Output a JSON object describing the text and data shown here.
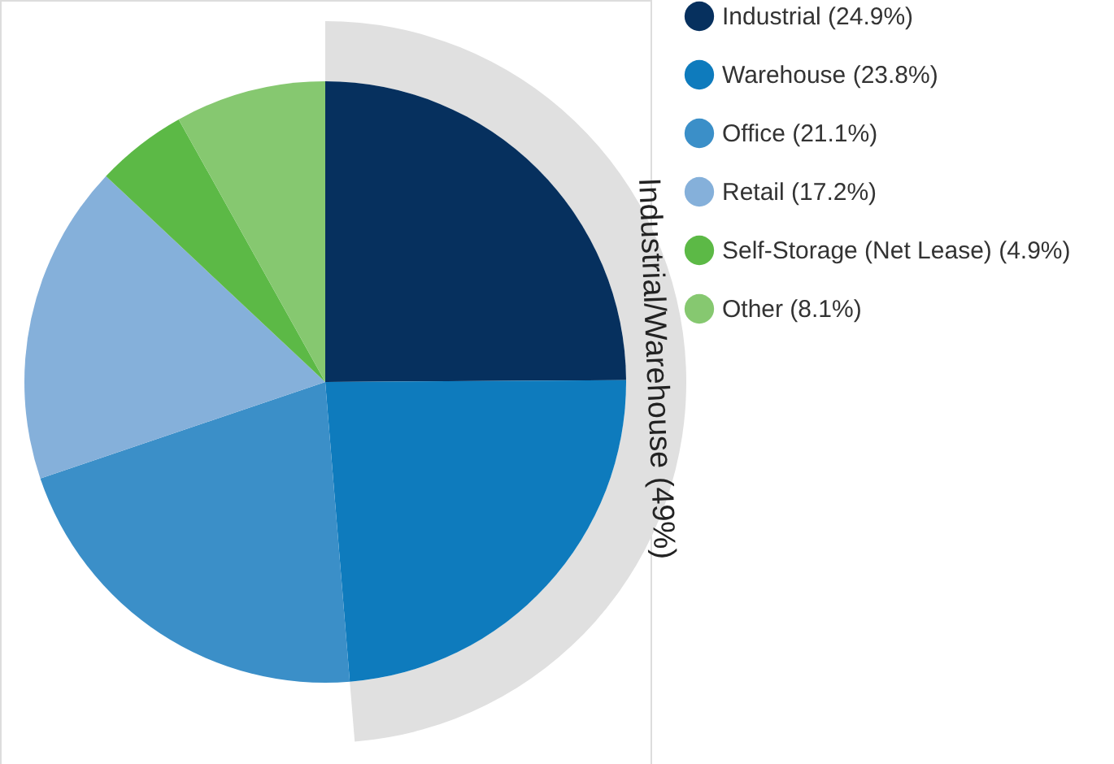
{
  "chart_data": {
    "type": "pie",
    "categories": [
      "Industrial (24.9%)",
      "Warehouse (23.8%)",
      "Office (21.1%)",
      "Retail (17.2%)",
      "Self-Storage (Net Lease) (4.9%)",
      "Other (8.1%)"
    ],
    "values": [
      24.9,
      23.8,
      21.1,
      17.2,
      4.9,
      8.1
    ],
    "colors": [
      "#06305e",
      "#0e7bbd",
      "#3b8fc8",
      "#85b0da",
      "#5cb946",
      "#86c870"
    ],
    "annotations": [
      "Industrial/Warehouse (49%)"
    ],
    "legend": "right"
  }
}
